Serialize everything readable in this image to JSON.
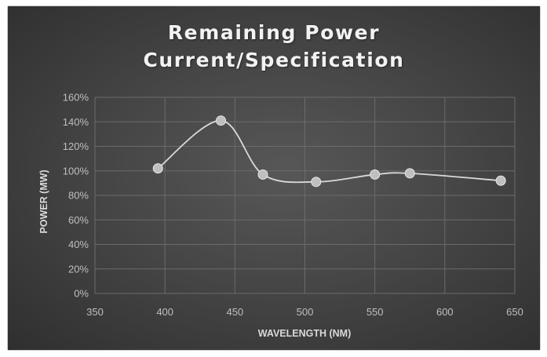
{
  "chart_data": {
    "type": "scatter",
    "title_lines": [
      "Remaining Power",
      "Current/Specification"
    ],
    "xlabel": "WAVELENGTH (NM)",
    "ylabel": "POWER (MW)",
    "xlim": [
      350,
      650
    ],
    "ylim": [
      0,
      1.6
    ],
    "x_ticks": [
      350,
      400,
      450,
      500,
      550,
      600,
      650
    ],
    "y_ticks": [
      0,
      0.2,
      0.4,
      0.6,
      0.8,
      1.0,
      1.2,
      1.4,
      1.6
    ],
    "x_tick_labels": [
      "350",
      "400",
      "450",
      "500",
      "550",
      "600",
      "650"
    ],
    "y_tick_labels": [
      "0%",
      "20%",
      "40%",
      "60%",
      "80%",
      "100%",
      "120%",
      "140%",
      "160%"
    ],
    "grid": true,
    "smooth_line": true,
    "series": [
      {
        "x": [
          395,
          440,
          470,
          508,
          550,
          575,
          640
        ],
        "y": [
          1.02,
          1.41,
          0.97,
          0.91,
          0.97,
          0.98,
          0.92
        ]
      }
    ],
    "colors": {
      "line": "#d9d9d9",
      "marker_fill": "#bfbfbf",
      "marker_stroke": "#e6e6e6",
      "grid": "#6b6b6b"
    }
  }
}
